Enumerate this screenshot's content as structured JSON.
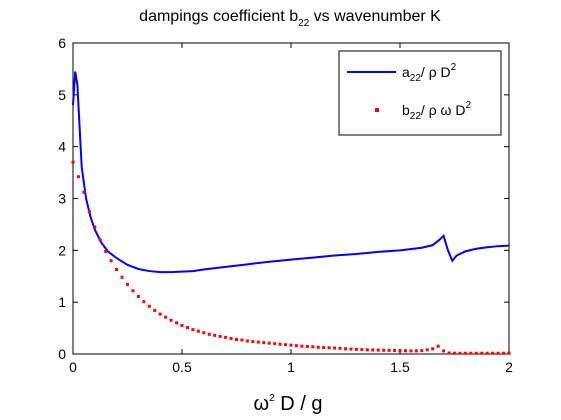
{
  "chart_data": {
    "type": "line",
    "title": {
      "main": "dampings coefficient b",
      "sub": "22",
      "rest": " vs wavenumber K"
    },
    "xlabel": {
      "sym": "ω",
      "sup": "2",
      "rest": " D / g"
    },
    "ylabel": "",
    "xlim": [
      0,
      2
    ],
    "ylim": [
      0,
      6
    ],
    "xticks": [
      "0",
      "0.5",
      "1",
      "1.5",
      "2"
    ],
    "yticks": [
      "0",
      "1",
      "2",
      "3",
      "4",
      "5",
      "6"
    ],
    "grid": false,
    "legend_position": "top-right",
    "legend": [
      {
        "pre": "a",
        "sub": "22",
        "post": "/ ρ D",
        "sup": "2"
      },
      {
        "pre": "b",
        "sub": "22",
        "post": "/ ρ ω D",
        "sup": "2"
      }
    ],
    "colors": {
      "series_a": "#0000ff",
      "series_b": "#ff0000"
    },
    "series": [
      {
        "style": "line",
        "x": [
          0.0,
          0.01,
          0.02,
          0.04,
          0.06,
          0.08,
          0.1,
          0.13,
          0.16,
          0.2,
          0.25,
          0.3,
          0.35,
          0.4,
          0.45,
          0.5,
          0.55,
          0.6,
          0.7,
          0.8,
          0.9,
          1.0,
          1.1,
          1.2,
          1.3,
          1.4,
          1.5,
          1.6,
          1.65,
          1.68,
          1.7,
          1.72,
          1.74,
          1.76,
          1.8,
          1.85,
          1.9,
          1.95,
          2.0
        ],
        "y": [
          4.8,
          5.45,
          5.2,
          3.6,
          3.0,
          2.65,
          2.4,
          2.15,
          1.98,
          1.85,
          1.72,
          1.64,
          1.6,
          1.58,
          1.58,
          1.59,
          1.6,
          1.63,
          1.68,
          1.73,
          1.78,
          1.82,
          1.86,
          1.9,
          1.93,
          1.97,
          2.0,
          2.05,
          2.1,
          2.2,
          2.28,
          2.0,
          1.8,
          1.9,
          1.98,
          2.03,
          2.06,
          2.08,
          2.09
        ]
      },
      {
        "style": "markers",
        "x": [
          0.0,
          0.025,
          0.05,
          0.075,
          0.1,
          0.125,
          0.15,
          0.175,
          0.2,
          0.225,
          0.25,
          0.275,
          0.3,
          0.325,
          0.35,
          0.375,
          0.4,
          0.425,
          0.45,
          0.475,
          0.5,
          0.525,
          0.55,
          0.575,
          0.6,
          0.625,
          0.65,
          0.675,
          0.7,
          0.725,
          0.75,
          0.775,
          0.8,
          0.825,
          0.85,
          0.875,
          0.9,
          0.925,
          0.95,
          0.975,
          1.0,
          1.025,
          1.05,
          1.075,
          1.1,
          1.125,
          1.15,
          1.175,
          1.2,
          1.225,
          1.25,
          1.275,
          1.3,
          1.325,
          1.35,
          1.375,
          1.4,
          1.425,
          1.45,
          1.475,
          1.5,
          1.525,
          1.55,
          1.575,
          1.6,
          1.625,
          1.65,
          1.675,
          1.7,
          1.725,
          1.75,
          1.775,
          1.8,
          1.825,
          1.85,
          1.875,
          1.9,
          1.925,
          1.95,
          1.975,
          2.0
        ],
        "y": [
          3.7,
          3.42,
          3.12,
          2.75,
          2.45,
          2.2,
          1.98,
          1.8,
          1.63,
          1.48,
          1.34,
          1.22,
          1.11,
          1.01,
          0.92,
          0.84,
          0.77,
          0.71,
          0.65,
          0.6,
          0.55,
          0.51,
          0.47,
          0.44,
          0.41,
          0.38,
          0.36,
          0.34,
          0.32,
          0.3,
          0.28,
          0.27,
          0.25,
          0.24,
          0.23,
          0.22,
          0.21,
          0.2,
          0.19,
          0.18,
          0.17,
          0.16,
          0.15,
          0.145,
          0.14,
          0.13,
          0.125,
          0.12,
          0.115,
          0.11,
          0.1,
          0.095,
          0.09,
          0.085,
          0.08,
          0.078,
          0.075,
          0.072,
          0.07,
          0.068,
          0.065,
          0.062,
          0.06,
          0.06,
          0.065,
          0.08,
          0.1,
          0.15,
          0.06,
          0.02,
          0.015,
          0.015,
          0.015,
          0.015,
          0.015,
          0.015,
          0.015,
          0.015,
          0.015,
          0.015,
          0.015
        ]
      }
    ]
  }
}
